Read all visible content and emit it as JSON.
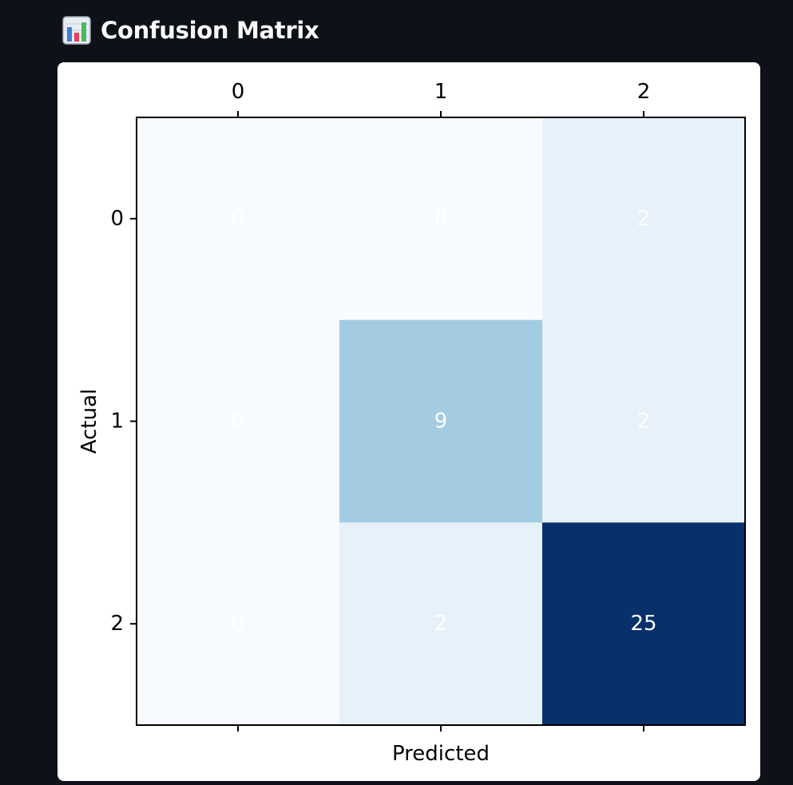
{
  "header": {
    "title": "Confusion Matrix",
    "icon": "bar-chart-icon"
  },
  "colors": {
    "page_background": "#0e1117",
    "card_background": "#ffffff",
    "cell_text": "#ffffff",
    "colormap": "Blues"
  },
  "chart_data": {
    "type": "heatmap",
    "title": "",
    "xlabel": "Predicted",
    "ylabel": "Actual",
    "x_tick_labels": [
      "0",
      "1",
      "2"
    ],
    "y_tick_labels": [
      "0",
      "1",
      "2"
    ],
    "x_ticks_position": "top",
    "matrix": [
      [
        0,
        0,
        2
      ],
      [
        0,
        9,
        2
      ],
      [
        0,
        2,
        25
      ]
    ],
    "cell_labels": [
      [
        "0",
        "0",
        "2"
      ],
      [
        "0",
        "9",
        "2"
      ],
      [
        "0",
        "2",
        "25"
      ]
    ],
    "vmin": 0,
    "vmax": 25,
    "grid": false,
    "legend": "none"
  }
}
